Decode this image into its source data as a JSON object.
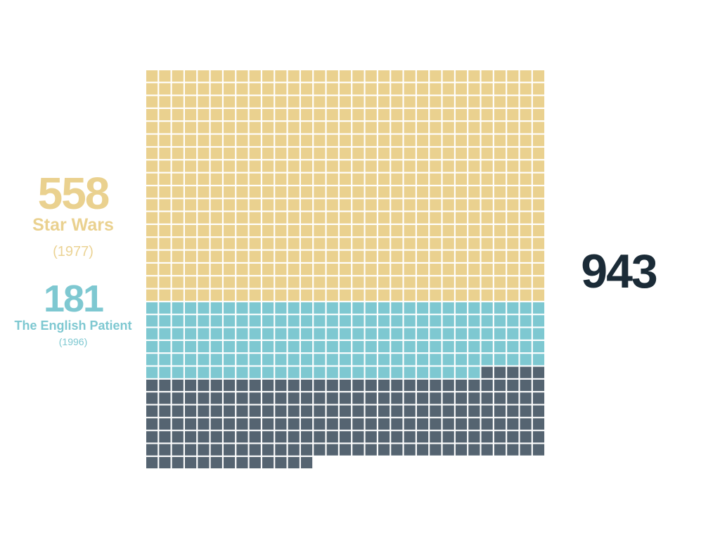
{
  "chart_data": {
    "type": "waffle",
    "title": "",
    "columns": 31,
    "total": 943,
    "series": [
      {
        "name": "Star Wars",
        "year": "(1977)",
        "value": 558,
        "value_label": "558",
        "color": "#EAD18F"
      },
      {
        "name": "The English Patient",
        "year": "(1996)",
        "value": 181,
        "value_label": "181",
        "color": "#7EC8D1"
      },
      {
        "value": 204,
        "color": "#556471"
      }
    ],
    "total_label": "943",
    "total_color": "#1B2B37"
  }
}
